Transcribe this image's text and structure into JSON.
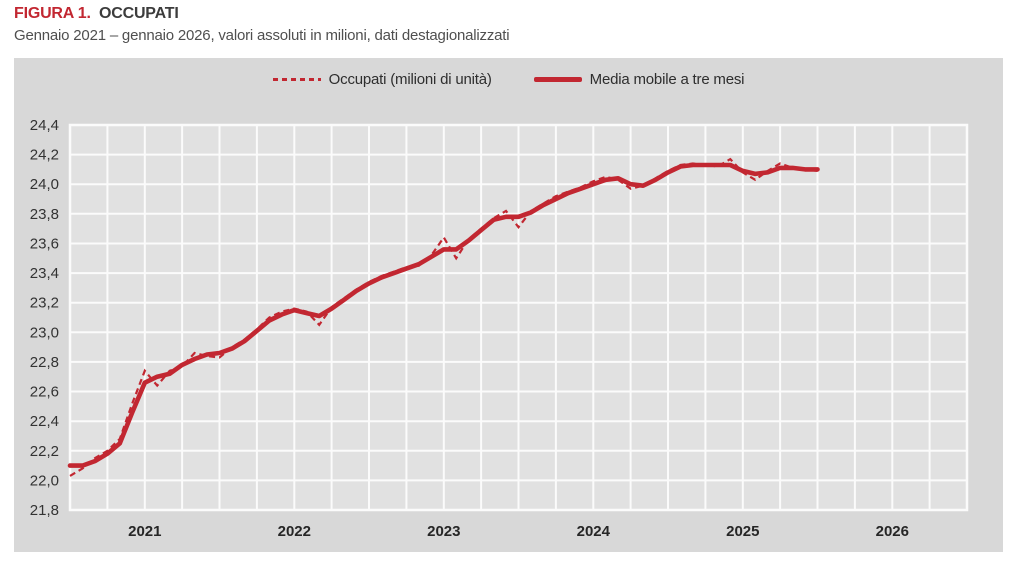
{
  "figure": {
    "label": "FIGURA 1.",
    "title": "OCCUPATI",
    "subtitle": "Gennaio 2021 – gennaio 2026, valori assoluti in milioni, dati destagionalizzati"
  },
  "legend": [
    {
      "label": "Occupati (milioni di unità)",
      "style": "dashed"
    },
    {
      "label": "Media mobile a tre mesi",
      "style": "solid"
    }
  ],
  "colors": {
    "series_red": "#c22731",
    "panel_bg": "#d8d8d8",
    "plot_bg": "#e1e1e1",
    "grid": "#fbfbfb",
    "tick_text": "#333333"
  },
  "chart_data": {
    "type": "line",
    "title": "OCCUPATI",
    "subtitle": "Gennaio 2021 – gennaio 2026, valori assoluti in milioni, dati destagionalizzati",
    "unit": "milioni di persone",
    "x_range": {
      "start": "2021-01",
      "end": "2026-01",
      "frequency": "monthly"
    },
    "x_axis_months_span": 72,
    "x_tick_labels": [
      "2021",
      "2022",
      "2023",
      "2024",
      "2025",
      "2026"
    ],
    "x_tick_month_centers": [
      6,
      18,
      30,
      42,
      54,
      66
    ],
    "ylim": [
      21.8,
      24.4
    ],
    "y_tick_step": 0.2,
    "y_tick_labels": [
      "24,4",
      "24,2",
      "24,0",
      "23,8",
      "23,6",
      "23,4",
      "23,2",
      "23,0",
      "22,8",
      "22,6",
      "22,4",
      "22,2",
      "22,0",
      "21,8"
    ],
    "grid": "white gridlines, quarterly vertical, 0.2 horizontal",
    "legend_position": "top-center",
    "series": [
      {
        "name": "Occupati (milioni di unità)",
        "style": "dashed",
        "values": [
          22.03,
          22.08,
          22.15,
          22.2,
          22.28,
          22.52,
          22.74,
          22.64,
          22.74,
          22.77,
          22.86,
          22.84,
          22.83,
          22.9,
          22.95,
          23.02,
          23.1,
          23.14,
          23.16,
          23.14,
          23.05,
          23.17,
          23.23,
          23.29,
          23.34,
          23.38,
          23.41,
          23.44,
          23.45,
          23.52,
          23.64,
          23.5,
          23.63,
          23.7,
          23.77,
          23.82,
          23.71,
          23.82,
          23.87,
          23.92,
          23.95,
          23.98,
          24.02,
          24.05,
          24.03,
          23.97,
          23.99,
          24.04,
          24.09,
          24.13,
          24.14,
          24.13,
          24.12,
          24.17,
          24.08,
          24.03,
          24.09,
          24.14,
          24.11,
          24.1,
          24.09
        ]
      },
      {
        "name": "Media mobile a tre mesi",
        "style": "solid",
        "values": [
          22.1,
          22.1,
          22.13,
          22.18,
          22.25,
          22.46,
          22.66,
          22.7,
          22.72,
          22.78,
          22.82,
          22.85,
          22.86,
          22.89,
          22.94,
          23.01,
          23.08,
          23.12,
          23.15,
          23.13,
          23.11,
          23.16,
          23.22,
          23.28,
          23.33,
          23.37,
          23.4,
          23.43,
          23.46,
          23.51,
          23.56,
          23.56,
          23.62,
          23.69,
          23.76,
          23.78,
          23.78,
          23.81,
          23.86,
          23.9,
          23.94,
          23.97,
          24.0,
          24.03,
          24.04,
          24.0,
          23.99,
          24.03,
          24.08,
          24.12,
          24.13,
          24.13,
          24.13,
          24.13,
          24.09,
          24.07,
          24.08,
          24.11,
          24.11,
          24.1,
          24.1
        ]
      }
    ]
  }
}
